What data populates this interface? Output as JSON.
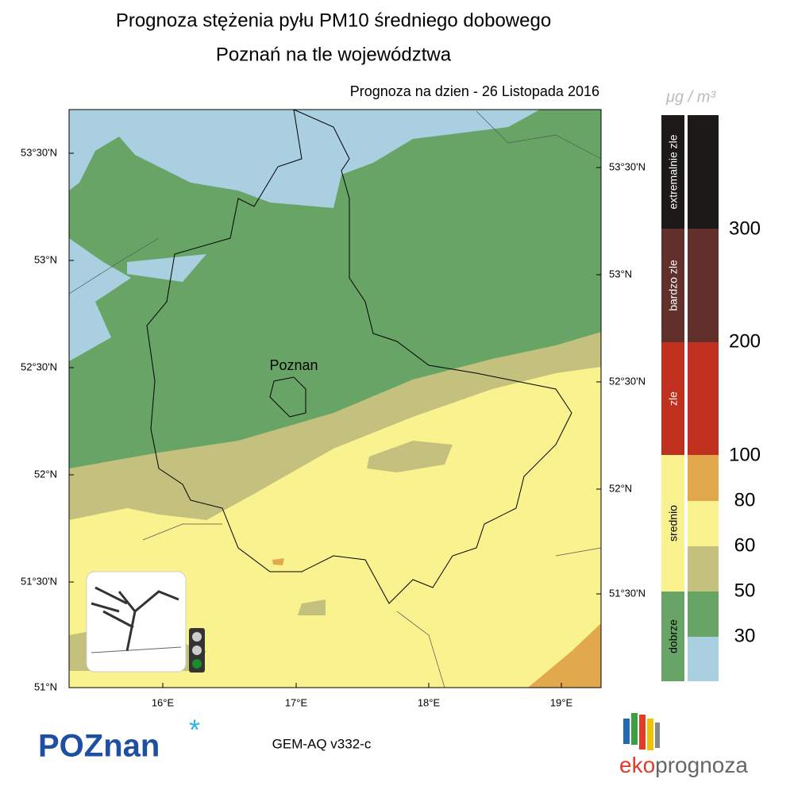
{
  "title": "Prognoza stężenia pyłu PM10 średniego dobowego",
  "subtitle": "Poznań na tle województwa",
  "date_label": "Prognoza na dzien -  26 Listopada 2016",
  "unit": "μg / m³",
  "map": {
    "city_label": "Poznan",
    "lat_left": [
      "53°30'N",
      "53°N",
      "52°30'N",
      "52°N",
      "51°30'N",
      "51°N"
    ],
    "lat_right": [
      "53°30'N",
      "53°N",
      "52°30'N",
      "52°N",
      "51°30'N"
    ],
    "lon": [
      "16°E",
      "17°E",
      "18°E",
      "19°E"
    ]
  },
  "legend": {
    "categories": [
      "extremalnie zle",
      "bardzo zle",
      "zle",
      "srednio",
      "dobrze"
    ],
    "thresholds": [
      300,
      200,
      100,
      80,
      60,
      50,
      30
    ]
  },
  "model": "GEM-AQ v332-c",
  "logo_city": "POZnan",
  "logo_brand_a": "eko",
  "logo_brand_b": "prognoza"
}
